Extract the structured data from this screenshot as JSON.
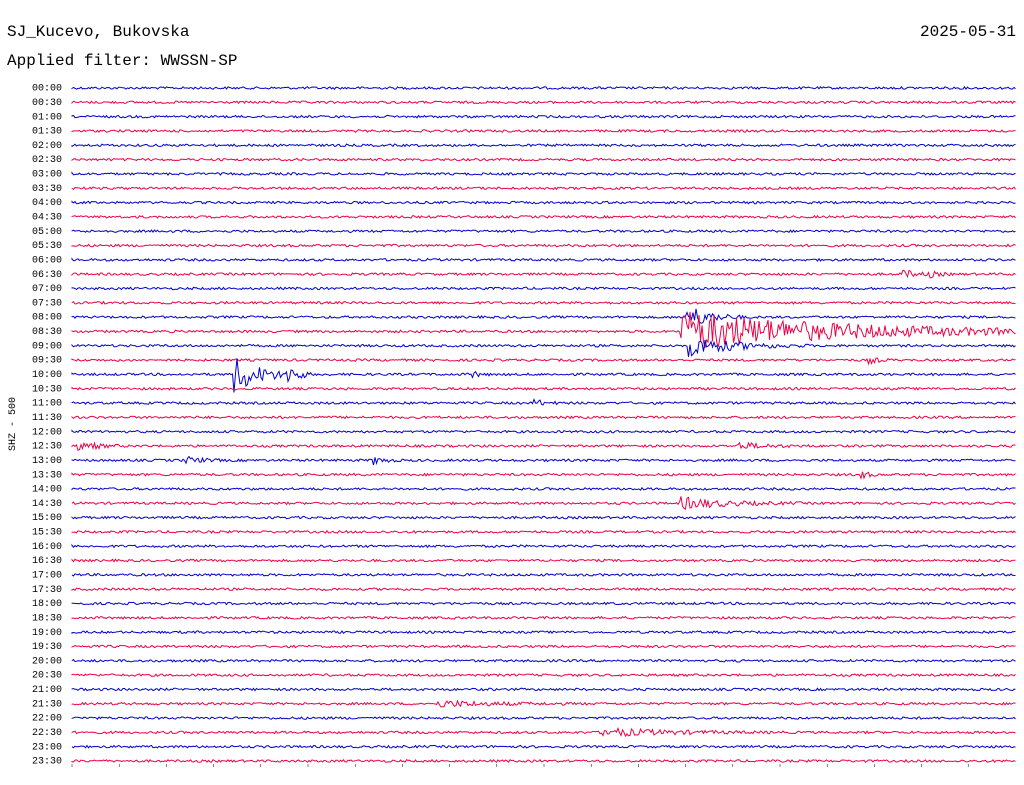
{
  "header": {
    "station": "SJ_Kucevo, Bukovska",
    "date": "2025-05-31",
    "filter": "Applied filter: WWSSN-SP"
  },
  "axis_label": "SHZ - 500",
  "trace_colors": [
    "#0000cc",
    "#ee0044"
  ],
  "rows": [
    "00:00",
    "00:30",
    "01:00",
    "01:30",
    "02:00",
    "02:30",
    "03:00",
    "03:30",
    "04:00",
    "04:30",
    "05:00",
    "05:30",
    "06:00",
    "06:30",
    "07:00",
    "07:30",
    "08:00",
    "08:30",
    "09:00",
    "09:30",
    "10:00",
    "10:30",
    "11:00",
    "11:30",
    "12:00",
    "12:30",
    "13:00",
    "13:30",
    "14:00",
    "14:30",
    "15:00",
    "15:30",
    "16:00",
    "16:30",
    "17:00",
    "17:30",
    "18:00",
    "18:30",
    "19:00",
    "19:30",
    "20:00",
    "20:30",
    "21:00",
    "21:30",
    "22:00",
    "22:30",
    "23:00",
    "23:30"
  ]
}
